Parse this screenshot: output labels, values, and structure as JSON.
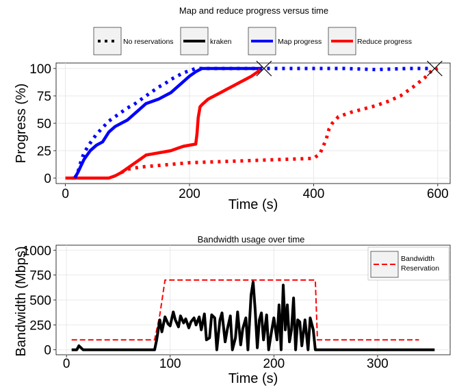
{
  "chart_data": [
    {
      "type": "line",
      "title": "Map and reduce progress versus time",
      "xlabel": "Time (s)",
      "ylabel": "Progress (%)",
      "xlim": [
        -15,
        620
      ],
      "ylim": [
        -5,
        105
      ],
      "xticks": [
        0,
        200,
        400,
        600
      ],
      "yticks": [
        0,
        25,
        50,
        75,
        100
      ],
      "grid": true,
      "legend_position": "top",
      "legend_entries": [
        {
          "label": "No reservations",
          "style": "dotted",
          "color": "#000000"
        },
        {
          "label": "kraken",
          "style": "solid",
          "color": "#000000"
        },
        {
          "label": "Map progress",
          "style": "solid",
          "color": "#0000ff"
        },
        {
          "label": "Reduce progress",
          "style": "solid",
          "color": "#ff0000"
        }
      ],
      "series": [
        {
          "kind": "map",
          "variant": "kraken",
          "color": "#0000ff",
          "dash": "solid",
          "x": [
            10,
            15,
            20,
            30,
            40,
            50,
            60,
            70,
            80,
            90,
            100,
            110,
            120,
            130,
            140,
            150,
            160,
            170,
            180,
            190,
            200,
            210,
            220,
            240,
            260,
            280,
            300,
            315
          ],
          "y": [
            0,
            0,
            5,
            17,
            25,
            30,
            33,
            42,
            47,
            50,
            53,
            58,
            63,
            68,
            70,
            72,
            75,
            78,
            83,
            88,
            93,
            97,
            100,
            100,
            100,
            100,
            100,
            100
          ]
        },
        {
          "kind": "reduce",
          "variant": "kraken",
          "color": "#ff0000",
          "dash": "solid",
          "x": [
            0,
            20,
            40,
            60,
            70,
            80,
            90,
            100,
            110,
            120,
            130,
            140,
            150,
            160,
            170,
            180,
            190,
            200,
            210,
            212,
            214,
            217,
            220,
            230,
            240,
            250,
            260,
            270,
            280,
            290,
            300,
            310,
            315
          ],
          "y": [
            0,
            0,
            0,
            0,
            0,
            2,
            5,
            9,
            13,
            17,
            21,
            22,
            23,
            24,
            25,
            27,
            29,
            30,
            31,
            40,
            55,
            65,
            67,
            72,
            75,
            78,
            81,
            84,
            87,
            90,
            93,
            97,
            100
          ]
        },
        {
          "kind": "map",
          "variant": "No reservations",
          "color": "#0000ff",
          "dash": "dotted",
          "x": [
            15,
            20,
            25,
            30,
            40,
            50,
            60,
            70,
            80,
            90,
            100,
            110,
            120,
            130,
            140,
            150,
            160,
            170,
            180,
            190,
            200,
            210,
            220,
            240,
            260,
            280,
            300,
            320,
            350,
            400,
            450,
            500,
            550,
            590
          ],
          "y": [
            0,
            5,
            15,
            23,
            32,
            40,
            46,
            52,
            56,
            60,
            64,
            67,
            71,
            75,
            79,
            83,
            86,
            90,
            93,
            96,
            98,
            100,
            100,
            100,
            100,
            100,
            100,
            100,
            100,
            100,
            100,
            99,
            100,
            100
          ]
        },
        {
          "kind": "reduce",
          "variant": "No reservations",
          "color": "#ff0000",
          "dash": "dotted",
          "x": [
            90,
            100,
            120,
            140,
            160,
            180,
            200,
            250,
            300,
            350,
            400,
            410,
            420,
            425,
            430,
            440,
            460,
            480,
            500,
            520,
            540,
            560,
            580,
            590,
            600
          ],
          "y": [
            5,
            8,
            10,
            11,
            12,
            13,
            14,
            15,
            16,
            17,
            18,
            22,
            35,
            45,
            50,
            56,
            60,
            63,
            66,
            70,
            75,
            83,
            92,
            98,
            100
          ]
        }
      ],
      "markers": [
        {
          "symbol": "x",
          "x": 320,
          "y": 100
        },
        {
          "symbol": "x",
          "x": 595,
          "y": 100
        }
      ]
    },
    {
      "type": "line",
      "title": "Bandwidth usage over time",
      "xlabel": "Time (s)",
      "ylabel": "Bandwidth (Mbps)",
      "xlim": [
        -10,
        370
      ],
      "ylim": [
        -50,
        1050
      ],
      "xticks": [
        0,
        100,
        200,
        300
      ],
      "yticks": [
        0,
        250,
        500,
        750,
        1000
      ],
      "grid": true,
      "legend_position": "top-right",
      "legend_entries": [
        {
          "label": "Bandwidth Reservation",
          "style": "dashed",
          "color": "#ff0000"
        }
      ],
      "series": [
        {
          "kind": "reservation",
          "color": "#ff0000",
          "dash": "dashed",
          "x": [
            5,
            85,
            90,
            95,
            240,
            242,
            340
          ],
          "y": [
            100,
            100,
            350,
            700,
            700,
            100,
            100
          ]
        },
        {
          "kind": "usage",
          "color": "#000000",
          "dash": "solid",
          "x": [
            5,
            10,
            12,
            14,
            16,
            85,
            87,
            90,
            92,
            95,
            98,
            100,
            103,
            105,
            108,
            110,
            113,
            115,
            118,
            120,
            123,
            125,
            128,
            130,
            133,
            135,
            138,
            140,
            143,
            145,
            148,
            150,
            153,
            155,
            158,
            160,
            163,
            165,
            168,
            170,
            173,
            175,
            178,
            180,
            182,
            184,
            186,
            188,
            190,
            193,
            195,
            198,
            200,
            203,
            205,
            207,
            209,
            211,
            213,
            215,
            217,
            219,
            221,
            223,
            225,
            227,
            230,
            233,
            235,
            238,
            240,
            243,
            250,
            300,
            355
          ],
          "y": [
            0,
            0,
            40,
            20,
            0,
            0,
            100,
            300,
            180,
            330,
            260,
            240,
            380,
            300,
            230,
            340,
            270,
            310,
            220,
            280,
            320,
            250,
            330,
            200,
            360,
            100,
            120,
            350,
            320,
            0,
            300,
            370,
            80,
            200,
            340,
            0,
            120,
            380,
            50,
            210,
            320,
            0,
            550,
            680,
            400,
            20,
            300,
            370,
            100,
            350,
            0,
            200,
            320,
            100,
            450,
            0,
            650,
            200,
            450,
            80,
            200,
            520,
            0,
            300,
            280,
            40,
            300,
            0,
            320,
            200,
            0,
            0,
            0,
            0,
            0
          ]
        }
      ]
    }
  ]
}
